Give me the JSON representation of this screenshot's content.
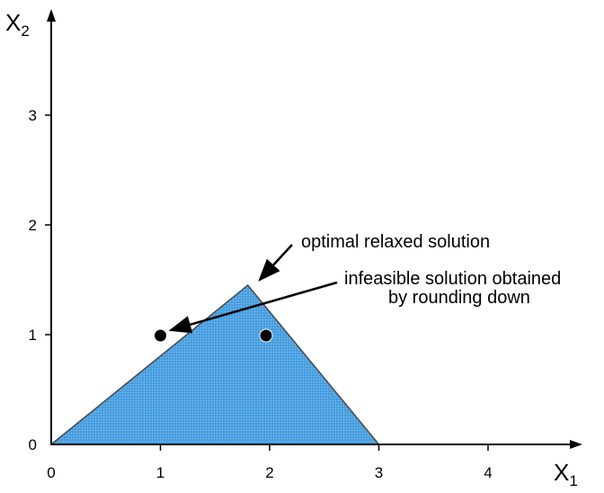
{
  "x_axis": {
    "label": "X",
    "subscript": "1",
    "ticks": [
      "0",
      "1",
      "2",
      "3",
      "4"
    ]
  },
  "y_axis": {
    "label": "X",
    "subscript": "2",
    "ticks": [
      "0",
      "1",
      "2",
      "3"
    ]
  },
  "feasible_region": {
    "vertices": [
      [
        0,
        0
      ],
      [
        1.8,
        1.45
      ],
      [
        3,
        0
      ]
    ],
    "fill": "#4a9fe0",
    "stroke": "#000000"
  },
  "points": [
    {
      "x": 1,
      "y": 1
    },
    {
      "x": 2,
      "y": 1
    }
  ],
  "annotations": {
    "optimal": "optimal relaxed solution",
    "infeasible_line1": "infeasible solution obtained",
    "infeasible_line2": "by rounding down"
  },
  "colors": {
    "region": "#4a9fe0",
    "point": "#000000",
    "axis": "#000000"
  }
}
